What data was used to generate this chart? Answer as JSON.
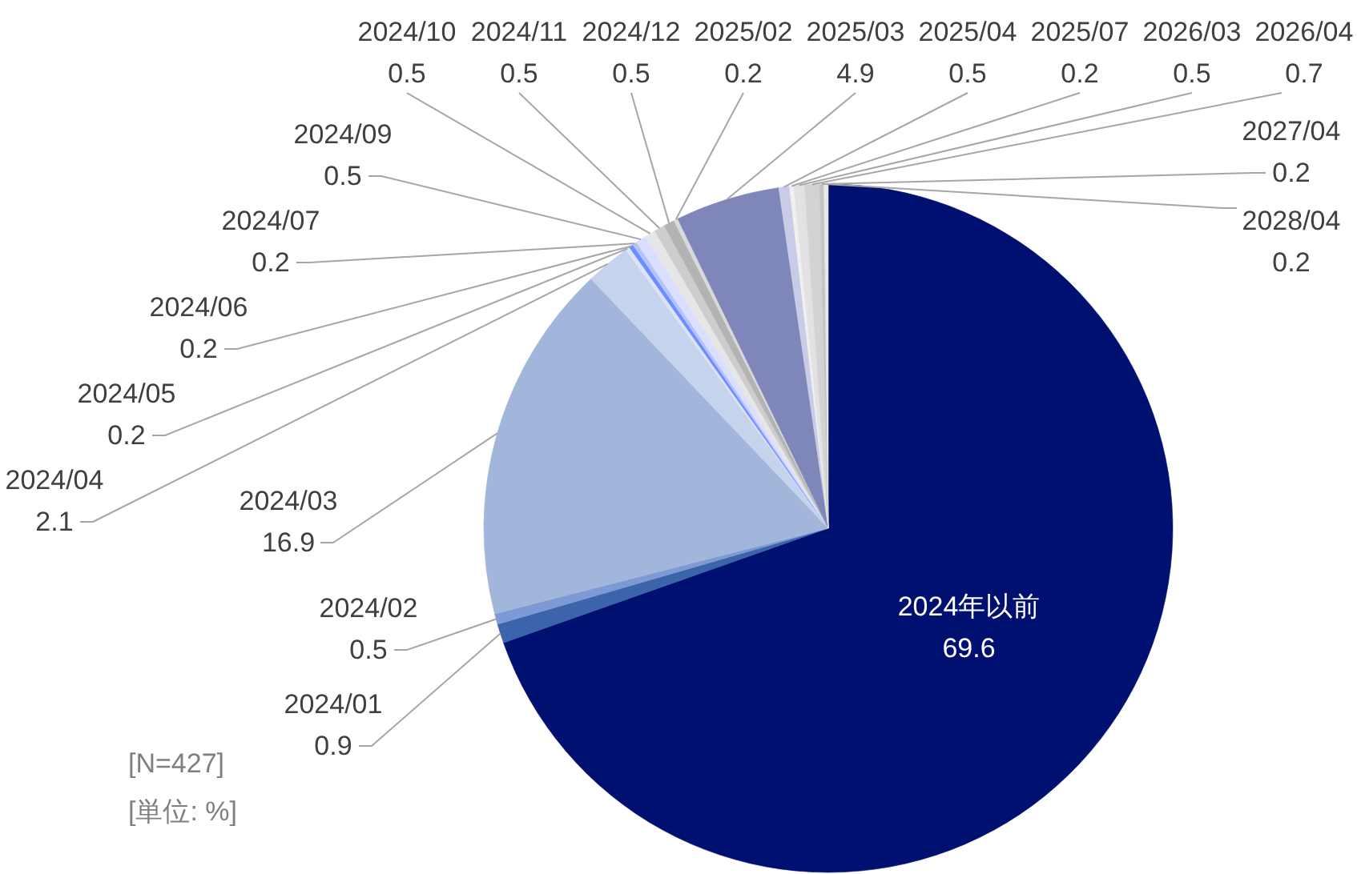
{
  "chart_data": {
    "type": "pie",
    "categories": [
      "2024年以前",
      "2024/01",
      "2024/02",
      "2024/03",
      "2024/04",
      "2024/05",
      "2024/06",
      "2024/07",
      "2024/09",
      "2024/10",
      "2024/11",
      "2024/12",
      "2025/02",
      "2025/03",
      "2025/04",
      "2025/07",
      "2026/03",
      "2026/04",
      "2027/04",
      "2028/04"
    ],
    "values": [
      69.6,
      0.9,
      0.5,
      16.9,
      2.1,
      0.2,
      0.2,
      0.2,
      0.5,
      0.5,
      0.5,
      0.5,
      0.2,
      4.9,
      0.5,
      0.2,
      0.5,
      0.7,
      0.2,
      0.2
    ],
    "colors": [
      "#001070",
      "#3c64aa",
      "#7d9ad4",
      "#a2b6dc",
      "#c6d3ec",
      "#dce3f4",
      "#6d8cff",
      "#b4c2ff",
      "#dadfff",
      "#e6e6e6",
      "#cdcdcd",
      "#b3b3b3",
      "#d9d9d9",
      "#7f86b9",
      "#c9cce6",
      "#f0f0f0",
      "#e2e2e2",
      "#d3d3d3",
      "#c4c4c4",
      "#e8e8e8"
    ],
    "data_labels": true,
    "annotations": [
      "[N=427]",
      "[単位: %]"
    ]
  }
}
